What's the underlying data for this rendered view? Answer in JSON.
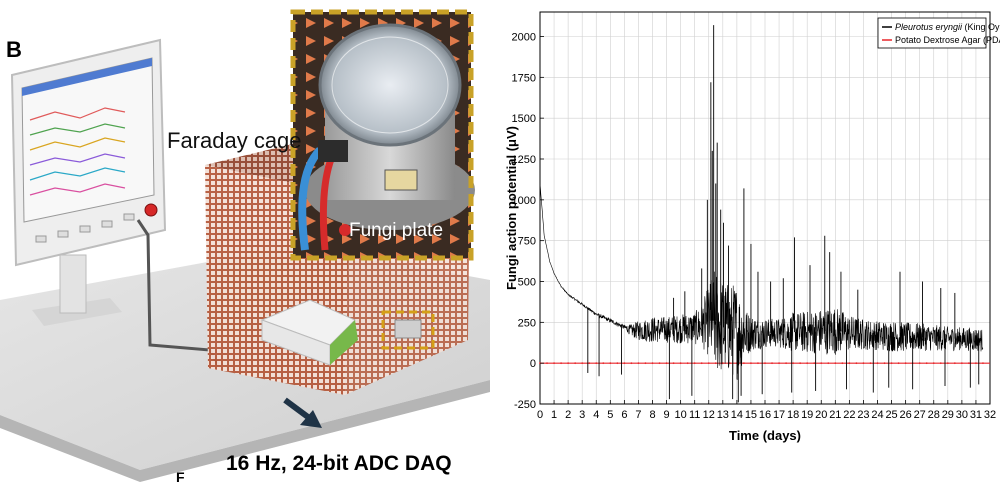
{
  "figure": {
    "panel_letter": "B",
    "faraday_label": "Faraday cage",
    "inset_label": "Fungi plate",
    "daq_label": "16 Hz, 24-bit ADC DAQ",
    "stray_letter": "F"
  },
  "chart_data": {
    "type": "line",
    "xlabel": "Time (days)",
    "ylabel": "Fungi action potential (μV)",
    "xlim": [
      0,
      32
    ],
    "ylim": [
      -250,
      2150
    ],
    "x_ticks": [
      0,
      1,
      2,
      3,
      4,
      5,
      6,
      7,
      8,
      9,
      10,
      11,
      12,
      13,
      14,
      15,
      16,
      17,
      18,
      19,
      20,
      21,
      22,
      23,
      24,
      25,
      26,
      27,
      28,
      29,
      30,
      31,
      32
    ],
    "y_ticks": [
      -250,
      0,
      250,
      500,
      750,
      1000,
      1250,
      1500,
      1750,
      2000
    ],
    "grid": true,
    "legend_position": "top-right",
    "series": [
      {
        "name": "Pleurotus eryngii (King Oyster)",
        "name_italic_part": "Pleurotus eryngii",
        "name_rest": " (King Oyster)",
        "color": "#000000",
        "baseline": [
          [
            0,
            1100
          ],
          [
            0.3,
            780
          ],
          [
            0.7,
            620
          ],
          [
            1,
            550
          ],
          [
            1.5,
            470
          ],
          [
            2,
            420
          ],
          [
            3,
            360
          ],
          [
            4,
            300
          ],
          [
            5,
            260
          ],
          [
            6,
            220
          ],
          [
            6.5,
            200
          ],
          [
            7,
            200
          ],
          [
            8,
            205
          ],
          [
            9,
            205
          ],
          [
            10,
            210
          ],
          [
            11,
            215
          ],
          [
            11.5,
            230
          ],
          [
            12,
            260
          ],
          [
            12.5,
            260
          ],
          [
            13,
            220
          ],
          [
            13.5,
            210
          ],
          [
            14,
            195
          ],
          [
            14.5,
            180
          ],
          [
            15,
            185
          ],
          [
            16,
            185
          ],
          [
            17,
            185
          ],
          [
            18,
            190
          ],
          [
            19,
            190
          ],
          [
            20,
            195
          ],
          [
            21,
            200
          ],
          [
            22,
            185
          ],
          [
            23,
            175
          ],
          [
            24,
            170
          ],
          [
            25,
            165
          ],
          [
            26,
            160
          ],
          [
            27,
            160
          ],
          [
            28,
            155
          ],
          [
            29,
            150
          ],
          [
            30,
            150
          ],
          [
            31,
            145
          ],
          [
            31.5,
            140
          ]
        ],
        "spread": [
          [
            0,
            0
          ],
          [
            6,
            15
          ],
          [
            7,
            60
          ],
          [
            8,
            80
          ],
          [
            9,
            80
          ],
          [
            10,
            90
          ],
          [
            11,
            100
          ],
          [
            11.5,
            130
          ],
          [
            12,
            220
          ],
          [
            12.5,
            330
          ],
          [
            13,
            290
          ],
          [
            13.5,
            280
          ],
          [
            14,
            300
          ],
          [
            14.5,
            170
          ],
          [
            15,
            110
          ],
          [
            16,
            90
          ],
          [
            17,
            90
          ],
          [
            18,
            120
          ],
          [
            19,
            130
          ],
          [
            20,
            140
          ],
          [
            21,
            150
          ],
          [
            22,
            110
          ],
          [
            23,
            95
          ],
          [
            24,
            90
          ],
          [
            25,
            95
          ],
          [
            26,
            90
          ],
          [
            27,
            85
          ],
          [
            28,
            80
          ],
          [
            29,
            75
          ],
          [
            30,
            70
          ],
          [
            31,
            75
          ],
          [
            31.5,
            70
          ]
        ],
        "spikes": [
          [
            12.35,
            2070
          ],
          [
            12.15,
            1720
          ],
          [
            12.6,
            1350
          ],
          [
            12.25,
            1300
          ],
          [
            11.9,
            1000
          ],
          [
            13.05,
            860
          ],
          [
            12.85,
            940
          ],
          [
            13.4,
            720
          ],
          [
            12.5,
            1100
          ],
          [
            11.5,
            580
          ],
          [
            14.5,
            1070
          ],
          [
            15.0,
            730
          ],
          [
            15.5,
            560
          ],
          [
            16.4,
            500
          ],
          [
            17.3,
            520
          ],
          [
            18.1,
            770
          ],
          [
            19.2,
            600
          ],
          [
            20.25,
            780
          ],
          [
            20.6,
            680
          ],
          [
            21.4,
            560
          ],
          [
            22.6,
            450
          ],
          [
            25.6,
            560
          ],
          [
            27.2,
            500
          ],
          [
            28.5,
            460
          ],
          [
            29.5,
            430
          ],
          [
            10.3,
            440
          ],
          [
            9.5,
            400
          ],
          [
            9.2,
            -220
          ],
          [
            10.8,
            -200
          ],
          [
            13.7,
            -220
          ],
          [
            14.1,
            -240
          ],
          [
            14.3,
            -200
          ],
          [
            15.8,
            -190
          ],
          [
            17.9,
            -180
          ],
          [
            19.6,
            -170
          ],
          [
            21.8,
            -160
          ],
          [
            23.7,
            -180
          ],
          [
            24.8,
            -150
          ],
          [
            26.5,
            -160
          ],
          [
            28.8,
            -140
          ],
          [
            30.6,
            -150
          ],
          [
            31.2,
            -130
          ],
          [
            3.4,
            -60
          ],
          [
            4.2,
            -80
          ],
          [
            5.8,
            -70
          ]
        ]
      },
      {
        "name": "Potato Dextrose Agar (PDA)",
        "color": "#e8262b",
        "values": [
          [
            0,
            0
          ],
          [
            32,
            0
          ]
        ]
      }
    ]
  }
}
